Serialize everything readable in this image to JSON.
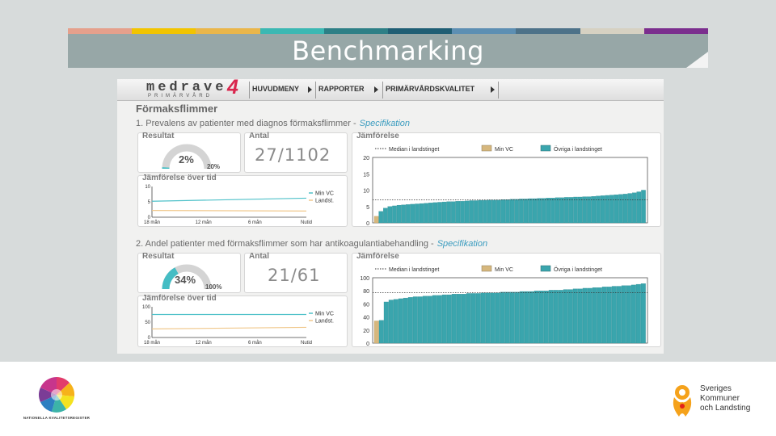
{
  "slide": {
    "title": "Benchmarking",
    "strip_colors": [
      "#e5a08c",
      "#f2c400",
      "#eab64a",
      "#3bb8b3",
      "#2d7f86",
      "#1f5e74",
      "#5d8fb3",
      "#4d7289",
      "#d6d1c2",
      "#7b2e8e"
    ]
  },
  "app": {
    "logo_word": "medrave",
    "logo_number": "4",
    "logo_sub": "PRIMÄRVÅRD",
    "menu": [
      "HUVUDMENY",
      "RAPPORTER",
      "PRIMÄRVÅRDSKVALITET"
    ],
    "page_heading": "Förmaksflimmer"
  },
  "sections": [
    {
      "title": "1. Prevalens av patienter med diagnos förmaksflimmer -",
      "spec_link": "Specifikation",
      "result_label": "Resultat",
      "result_pct": "2%",
      "result_fraction": 0.02,
      "target_label": "20%",
      "target_fraction": 0.2,
      "count_label": "Antal",
      "count": "27/1102",
      "compare_label": "Jämförelse",
      "time_label": "Jämförelse över tid",
      "time_y_ticks": [
        "10",
        "5",
        "0"
      ],
      "time_x_ticks": [
        "18 mån",
        "12 mån",
        "6 mån",
        "Nutid"
      ],
      "time_legend": [
        "Min VC",
        "Landst."
      ],
      "legend": [
        "Median i landstinget",
        "Min VC",
        "Övriga i landstinget"
      ],
      "y_ticks": [
        "20",
        "15",
        "10",
        "5",
        "0"
      ]
    },
    {
      "title": "2. Andel patienter med förmaksflimmer som har antikoagulantiabehandling -",
      "spec_link": "Specifikation",
      "result_label": "Resultat",
      "result_pct": "34%",
      "result_fraction": 0.34,
      "target_label": "100%",
      "target_fraction": 1.0,
      "count_label": "Antal",
      "count": "21/61",
      "compare_label": "Jämförelse",
      "time_label": "Jämförelse över tid",
      "time_y_ticks": [
        "100",
        "50",
        "0"
      ],
      "time_x_ticks": [
        "18 mån",
        "12 mån",
        "6 mån",
        "Nutid"
      ],
      "time_legend": [
        "Min VC",
        "Landst."
      ],
      "legend": [
        "Median i landstinget",
        "Min VC",
        "Övriga i landstinget"
      ],
      "y_ticks": [
        "100",
        "80",
        "60",
        "40",
        "20",
        "0"
      ]
    }
  ],
  "chart_data": [
    {
      "type": "bar",
      "title": "Jämförelse",
      "ylim": [
        0,
        20
      ],
      "median": 7,
      "highlight_value": 2,
      "series": [
        {
          "name": "Min VC",
          "values": [
            2
          ]
        },
        {
          "name": "Övriga i landstinget",
          "values": [
            3.5,
            4.5,
            5,
            5.2,
            5.4,
            5.5,
            5.6,
            5.7,
            5.8,
            5.9,
            6,
            6.1,
            6.2,
            6.3,
            6.4,
            6.5,
            6.5,
            6.6,
            6.6,
            6.7,
            6.8,
            6.8,
            6.9,
            6.9,
            7,
            7,
            7,
            7.1,
            7.1,
            7.2,
            7.2,
            7.3,
            7.3,
            7.4,
            7.4,
            7.5,
            7.5,
            7.6,
            7.6,
            7.7,
            7.7,
            7.8,
            7.8,
            7.9,
            7.9,
            8,
            8,
            8.1,
            8.2,
            8.3,
            8.4,
            8.5,
            8.6,
            8.7,
            8.8,
            9,
            9.2,
            9.5,
            10
          ]
        }
      ]
    },
    {
      "type": "bar",
      "title": "Jämförelse",
      "ylim": [
        0,
        100
      ],
      "median": 77,
      "highlight_value": 34,
      "series": [
        {
          "name": "Min VC",
          "values": [
            34
          ]
        },
        {
          "name": "Övriga i landstinget",
          "values": [
            35,
            63,
            66,
            67,
            68,
            69,
            70,
            71,
            71,
            72,
            72,
            73,
            73,
            74,
            74,
            75,
            75,
            75,
            76,
            76,
            76,
            77,
            77,
            77,
            77,
            78,
            78,
            78,
            78,
            79,
            79,
            79,
            80,
            80,
            80,
            81,
            81,
            81,
            82,
            82,
            83,
            83,
            84,
            84,
            85,
            85,
            86,
            86,
            87,
            87,
            88,
            88,
            89,
            90,
            91
          ]
        }
      ]
    }
  ],
  "footer": {
    "left_logo_text": "NATIONELLA KVALITETSREGISTER",
    "right_logo_text": [
      "Sveriges",
      "Kommuner",
      "och Landsting"
    ]
  },
  "colors": {
    "teal": "#3aa5ad",
    "tan": "#d6b77d",
    "gauge_fill": "#45bdc4",
    "gauge_track": "#d4d4d4"
  }
}
